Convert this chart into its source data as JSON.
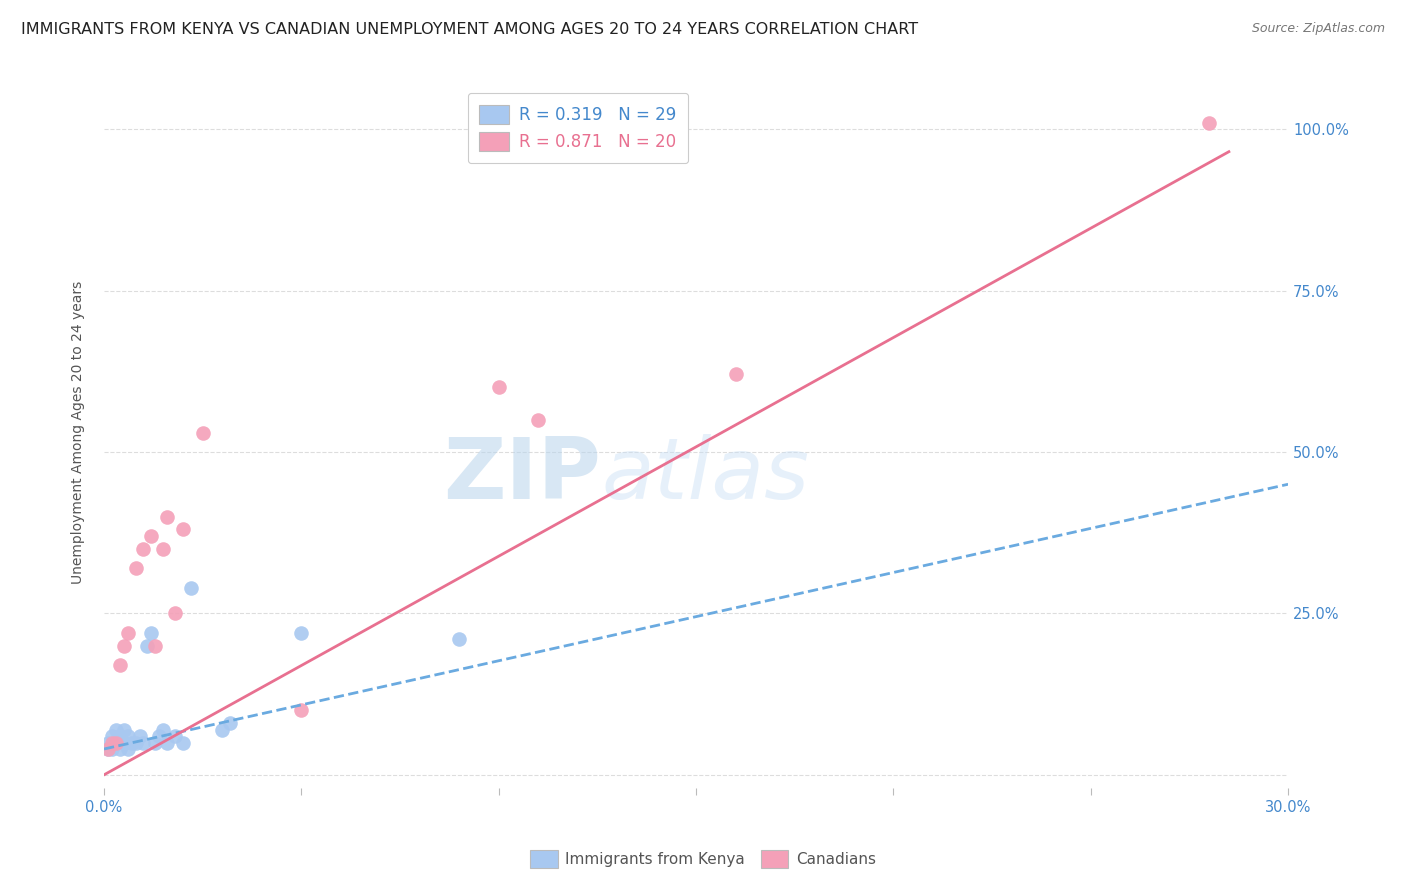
{
  "title": "IMMIGRANTS FROM KENYA VS CANADIAN UNEMPLOYMENT AMONG AGES 20 TO 24 YEARS CORRELATION CHART",
  "source": "Source: ZipAtlas.com",
  "ylabel_label": "Unemployment Among Ages 20 to 24 years",
  "xlim": [
    0.0,
    0.3
  ],
  "ylim": [
    -0.02,
    1.08
  ],
  "blue_color": "#A8C8F0",
  "pink_color": "#F4A0B8",
  "blue_line_color": "#6AAAE0",
  "pink_line_color": "#E87090",
  "watermark_zip": "ZIP",
  "watermark_atlas": "atlas",
  "blue_scatter_x": [
    0.001,
    0.001,
    0.002,
    0.002,
    0.003,
    0.003,
    0.004,
    0.004,
    0.005,
    0.005,
    0.006,
    0.006,
    0.007,
    0.008,
    0.009,
    0.01,
    0.011,
    0.012,
    0.013,
    0.014,
    0.015,
    0.016,
    0.018,
    0.02,
    0.022,
    0.03,
    0.032,
    0.05,
    0.09
  ],
  "blue_scatter_y": [
    0.04,
    0.05,
    0.04,
    0.06,
    0.05,
    0.07,
    0.04,
    0.06,
    0.05,
    0.07,
    0.04,
    0.06,
    0.05,
    0.05,
    0.06,
    0.05,
    0.2,
    0.22,
    0.05,
    0.06,
    0.07,
    0.05,
    0.06,
    0.05,
    0.29,
    0.07,
    0.08,
    0.22,
    0.21
  ],
  "pink_scatter_x": [
    0.001,
    0.002,
    0.003,
    0.004,
    0.005,
    0.006,
    0.008,
    0.01,
    0.012,
    0.013,
    0.015,
    0.016,
    0.018,
    0.02,
    0.025,
    0.05,
    0.1,
    0.11,
    0.16,
    0.28
  ],
  "pink_scatter_y": [
    0.04,
    0.05,
    0.05,
    0.17,
    0.2,
    0.22,
    0.32,
    0.35,
    0.37,
    0.2,
    0.35,
    0.4,
    0.25,
    0.38,
    0.53,
    0.1,
    0.6,
    0.55,
    0.62,
    1.01
  ],
  "blue_line_x": [
    0.0,
    0.3
  ],
  "blue_line_y": [
    0.04,
    0.45
  ],
  "pink_line_x": [
    0.0,
    0.285
  ],
  "pink_line_y": [
    0.0,
    0.965
  ],
  "x_tick_positions": [
    0.0,
    0.05,
    0.1,
    0.15,
    0.2,
    0.25,
    0.3
  ],
  "x_tick_labels": [
    "0.0%",
    "",
    "",
    "",
    "",
    "",
    "30.0%"
  ],
  "y_tick_positions": [
    0.0,
    0.25,
    0.5,
    0.75,
    1.0
  ],
  "y_tick_labels_right": [
    "",
    "25.0%",
    "50.0%",
    "75.0%",
    "100.0%"
  ],
  "title_fontsize": 11.5,
  "source_fontsize": 9,
  "legend_fontsize": 12,
  "axis_label_fontsize": 10,
  "tick_fontsize": 10.5,
  "right_tick_color": "#4488CC",
  "bottom_tick_color": "#4488CC",
  "grid_color": "#DDDDDD",
  "axis_label_color": "#555555",
  "title_color": "#222222",
  "source_color": "#777777",
  "legend_text_color_1": "#4488CC",
  "legend_text_color_2": "#E87090",
  "legend_r1": "R = 0.319",
  "legend_n1": "N = 29",
  "legend_r2": "R = 0.871",
  "legend_n2": "N = 20",
  "bottom_legend_labels": [
    "Immigrants from Kenya",
    "Canadians"
  ],
  "bottom_legend_color": "#555555"
}
